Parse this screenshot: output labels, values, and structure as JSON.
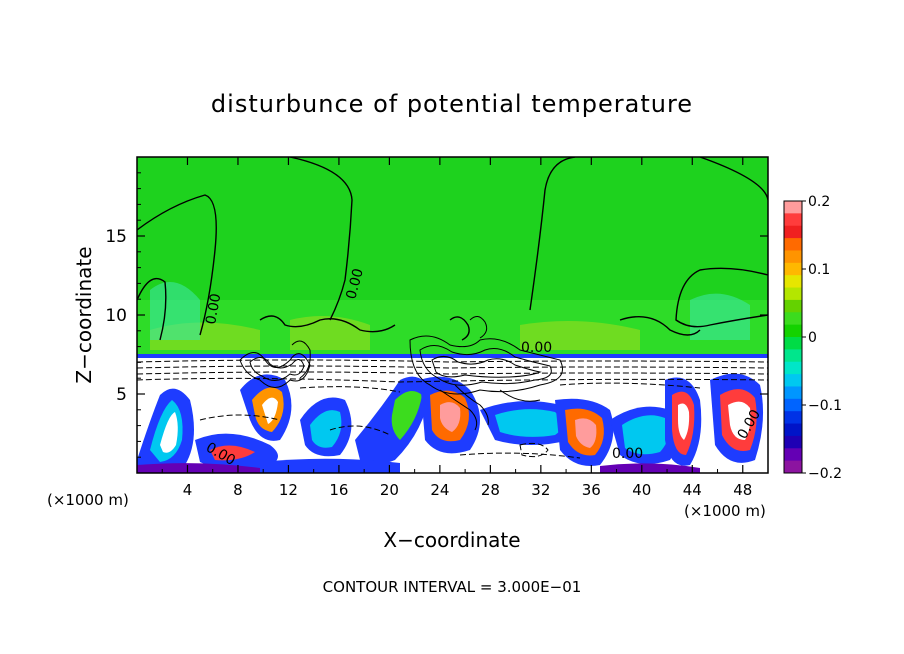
{
  "chart_data": {
    "type": "heatmap",
    "title": "disturbunce of potential temperature",
    "xlabel": "X−coordinate",
    "ylabel": "Z−coordinate",
    "x_unit_left": "(×1000 m)",
    "x_unit_right": "(×1000 m)",
    "xlim": [
      0,
      50
    ],
    "ylim": [
      0,
      20
    ],
    "x_ticks": [
      4,
      8,
      12,
      16,
      20,
      24,
      28,
      32,
      36,
      40,
      44,
      48
    ],
    "y_ticks": [
      5,
      10,
      15
    ],
    "contour_interval_text": "CONTOUR INTERVAL = 3.000E−01",
    "contour_labels": [
      {
        "text": "0.00",
        "x": 5.5,
        "y": 10.5
      },
      {
        "text": "0.00",
        "x": 17.5,
        "y": 12.5
      },
      {
        "text": "0.00",
        "x": 31.5,
        "y": 7.8
      },
      {
        "text": "0.00",
        "x": 7.0,
        "y": 1.1
      },
      {
        "text": "0.00",
        "x": 39.0,
        "y": 1.2
      },
      {
        "text": "0.00",
        "x": 47.5,
        "y": 3.5
      }
    ],
    "colorbar": {
      "range": [
        -0.2,
        0.2
      ],
      "tick_labels": [
        "0.2",
        "0.1",
        "0",
        "−0.1",
        "−0.2"
      ],
      "tick_values": [
        0.2,
        0.1,
        0,
        -0.1,
        -0.2
      ],
      "colors": [
        "#ff9c9c",
        "#ff3c3c",
        "#f02020",
        "#ff6a00",
        "#ff9400",
        "#ffb800",
        "#e6e600",
        "#b4e600",
        "#64d200",
        "#3cdc1e",
        "#14d200",
        "#00dc46",
        "#00e68c",
        "#00e6c8",
        "#00c8f0",
        "#0096ff",
        "#0064ff",
        "#0032e6",
        "#0014c8",
        "#1e00b4",
        "#6400b4",
        "#8c14a0"
      ]
    }
  }
}
